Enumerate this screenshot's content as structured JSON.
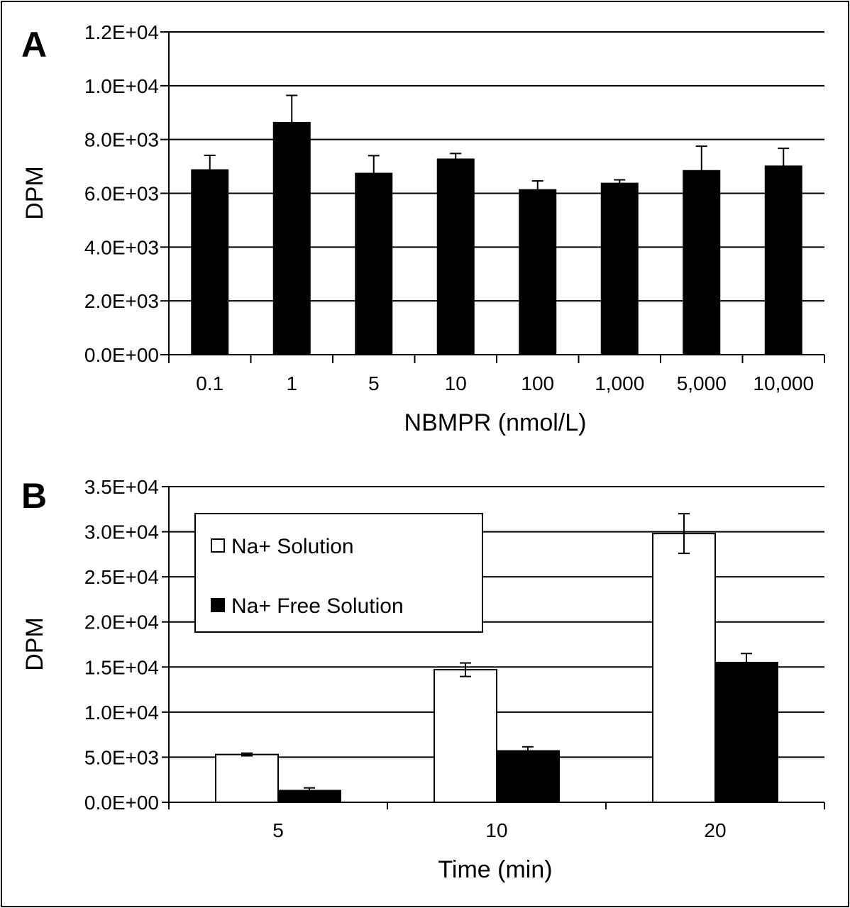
{
  "chart_data": [
    {
      "panel": "A",
      "type": "bar",
      "xlabel": "NBMPR (nmol/L)",
      "ylabel": "DPM",
      "categories": [
        "0.1",
        "1",
        "5",
        "10",
        "100",
        "1,000",
        "5,000",
        "10,000"
      ],
      "values": [
        6880,
        8640,
        6750,
        7280,
        6140,
        6380,
        6850,
        7020
      ],
      "errors": [
        530,
        1000,
        650,
        200,
        320,
        120,
        900,
        650
      ],
      "ylim": [
        0,
        12000
      ],
      "yticks": [
        0,
        2000,
        4000,
        6000,
        8000,
        10000,
        12000
      ],
      "ytick_labels": [
        "0.0E+00",
        "2.0E+03",
        "4.0E+03",
        "6.0E+03",
        "8.0E+03",
        "1.0E+04",
        "1.2E+04"
      ],
      "grid": true,
      "bar_color": "#000000"
    },
    {
      "panel": "B",
      "type": "bar",
      "xlabel": "Time (min)",
      "ylabel": "DPM",
      "categories": [
        "5",
        "10",
        "20"
      ],
      "series": [
        {
          "name": "Na+ Solution",
          "values": [
            5300,
            14700,
            29800
          ],
          "errors": [
            150,
            750,
            2200
          ],
          "color": "#ffffff"
        },
        {
          "name": "Na+ Free Solution",
          "values": [
            1300,
            5700,
            15500
          ],
          "errors": [
            300,
            450,
            1000
          ],
          "color": "#000000"
        }
      ],
      "ylim": [
        0,
        35000
      ],
      "yticks": [
        0,
        5000,
        10000,
        15000,
        20000,
        25000,
        30000,
        35000
      ],
      "ytick_labels": [
        "0.0E+00",
        "5.0E+03",
        "1.0E+04",
        "1.5E+04",
        "2.0E+04",
        "2.5E+04",
        "3.0E+04",
        "3.5E+04"
      ],
      "grid": true,
      "legend": "top-left"
    }
  ]
}
